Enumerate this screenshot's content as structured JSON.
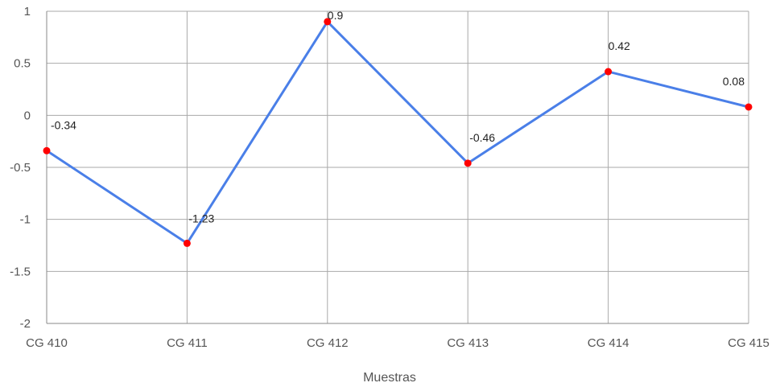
{
  "chart_data": {
    "type": "line",
    "categories": [
      "CG 410",
      "CG 411",
      "CG 412",
      "CG 413",
      "CG 414",
      "CG 415"
    ],
    "series": [
      {
        "values": [
          -0.34,
          -1.23,
          0.9,
          -0.46,
          0.42,
          0.08
        ]
      }
    ],
    "data_labels": [
      "-0.34",
      "-1.23",
      "0.9",
      "-0.46",
      "0.42",
      "0.08"
    ],
    "y_ticks": [
      1,
      0.5,
      0,
      -0.5,
      -1,
      -1.5,
      -2
    ],
    "y_tick_labels": [
      "1",
      "0.5",
      "0",
      "-0.5",
      "-1",
      "-1.5",
      "-2"
    ],
    "title": "",
    "xlabel": "Muestras",
    "ylabel": "",
    "ylim": [
      -2,
      1
    ],
    "grid": true,
    "legend": "none",
    "colors": {
      "line": "#4a7fe8",
      "marker": "#ff0000",
      "grid": "#a9a9a9"
    }
  }
}
